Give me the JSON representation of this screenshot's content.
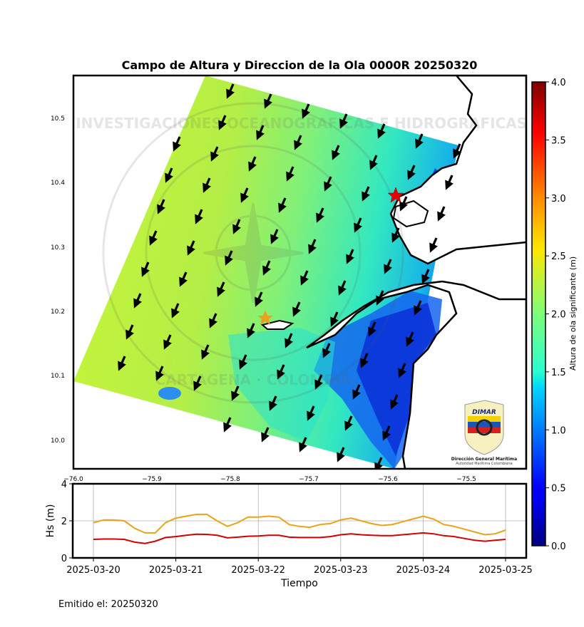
{
  "map": {
    "title": "Campo de Altura y Direccion de la Ola 0000R 20250320",
    "colorbar_label": "Altura de ola significante (m)",
    "colorbar_ticks": [
      "0.0",
      "0.5",
      "1.0",
      "1.5",
      "2.0",
      "2.5",
      "3.0",
      "3.5",
      "4.0"
    ],
    "lon_ticks": [
      "−76.0",
      "−75.9",
      "−75.8",
      "−75.7",
      "−75.6",
      "−75.5"
    ],
    "lat_ticks": [
      "10.0",
      "10.1",
      "10.2",
      "10.3",
      "10.4",
      "10.5"
    ],
    "logo": {
      "name": "DIMAR",
      "line1": "Dirección General Marítima",
      "line2": "Autoridad Marítima Colombiana"
    },
    "watermark": {
      "top": "CENTRO DE INVESTIGACIONES OCEANOGRAFICAS E HIDROGRAFICAS",
      "bottom": "CARTAGENA · COLOMBIA"
    },
    "colors": {
      "frame": "#000000",
      "red_star": "#e60000",
      "orange_star": "#f0a020"
    }
  },
  "chart_data": {
    "type": "line",
    "xlabel": "Tiempo",
    "ylabel": "Hs (m)",
    "ylim": [
      0,
      4
    ],
    "yticks": [
      "0",
      "2",
      "4"
    ],
    "xticks": [
      "2025-03-20",
      "2025-03-21",
      "2025-03-22",
      "2025-03-23",
      "2025-03-24",
      "2025-03-25"
    ],
    "grid": true,
    "x_days": [
      0,
      0.125,
      0.25,
      0.375,
      0.5,
      0.625,
      0.75,
      0.875,
      1,
      1.125,
      1.25,
      1.375,
      1.5,
      1.625,
      1.75,
      1.875,
      2,
      2.125,
      2.25,
      2.375,
      2.5,
      2.625,
      2.75,
      2.875,
      3,
      3.125,
      3.25,
      3.375,
      3.5,
      3.625,
      3.75,
      3.875,
      4,
      4.125,
      4.25,
      4.375,
      4.5,
      4.625,
      4.75,
      4.875,
      5
    ],
    "series": [
      {
        "color": "#e8a317",
        "values": [
          1.9,
          2.05,
          2.05,
          2.0,
          1.6,
          1.35,
          1.35,
          1.9,
          2.15,
          2.25,
          2.35,
          2.35,
          2.0,
          1.7,
          1.9,
          2.2,
          2.2,
          2.25,
          2.2,
          1.8,
          1.7,
          1.65,
          1.8,
          1.85,
          2.05,
          2.15,
          2.0,
          1.85,
          1.75,
          1.8,
          1.95,
          2.1,
          2.25,
          2.1,
          1.8,
          1.7,
          1.55,
          1.4,
          1.25,
          1.3,
          1.5
        ]
      },
      {
        "color": "#d40000",
        "values": [
          1.0,
          1.02,
          1.02,
          1.0,
          0.85,
          0.78,
          0.9,
          1.1,
          1.15,
          1.22,
          1.28,
          1.27,
          1.22,
          1.08,
          1.12,
          1.17,
          1.18,
          1.22,
          1.22,
          1.12,
          1.1,
          1.1,
          1.1,
          1.15,
          1.25,
          1.3,
          1.25,
          1.22,
          1.2,
          1.2,
          1.25,
          1.3,
          1.35,
          1.3,
          1.2,
          1.15,
          1.05,
          0.95,
          0.9,
          0.95,
          1.0
        ]
      }
    ]
  },
  "footer": {
    "emitted": "Emitido el: 20250320"
  }
}
